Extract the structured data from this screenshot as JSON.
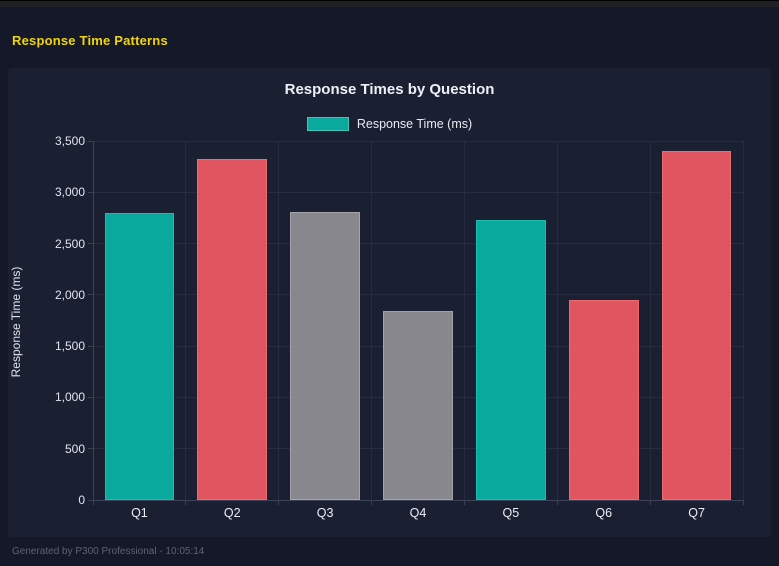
{
  "page": {
    "heading": "Response Time Patterns"
  },
  "footer": {
    "text": "Generated by P300 Professional - 10:05:14"
  },
  "colors": {
    "page_background": "#141828",
    "panel_background": "#1a1f32",
    "heading_yellow": "#f0d40e",
    "teal": "#0aa99e",
    "red": "#e15561",
    "gray": "#88878d",
    "grid": "#272c3f"
  },
  "chart_data": {
    "type": "bar",
    "title": "Response Times by Question",
    "legend": [
      {
        "label": "Response Time (ms)",
        "color": "#0aa99e"
      }
    ],
    "legend_position": "top",
    "categories": [
      "Q1",
      "Q2",
      "Q3",
      "Q4",
      "Q5",
      "Q6",
      "Q7"
    ],
    "series": [
      {
        "name": "Response Time (ms)",
        "values": [
          2800,
          3325,
          2810,
          1845,
          2730,
          1950,
          3405
        ]
      }
    ],
    "bar_colors": [
      "#0aa99e",
      "#e15561",
      "#88878d",
      "#88878d",
      "#0aa99e",
      "#e15561",
      "#e15561"
    ],
    "bar_border_colors": [
      "#1cbcae",
      "#ee6a72",
      "#a2a2a8",
      "#a2a2a8",
      "#1cbcae",
      "#ee6a72",
      "#ee6a72"
    ],
    "xlabel": "",
    "ylabel": "Response Time (ms)",
    "ylim": [
      0,
      3500
    ],
    "ytick_step": 500,
    "ytick_labels": [
      "0",
      "500",
      "1,000",
      "1,500",
      "2,000",
      "2,500",
      "3,000",
      "3,500"
    ],
    "grid": true
  }
}
